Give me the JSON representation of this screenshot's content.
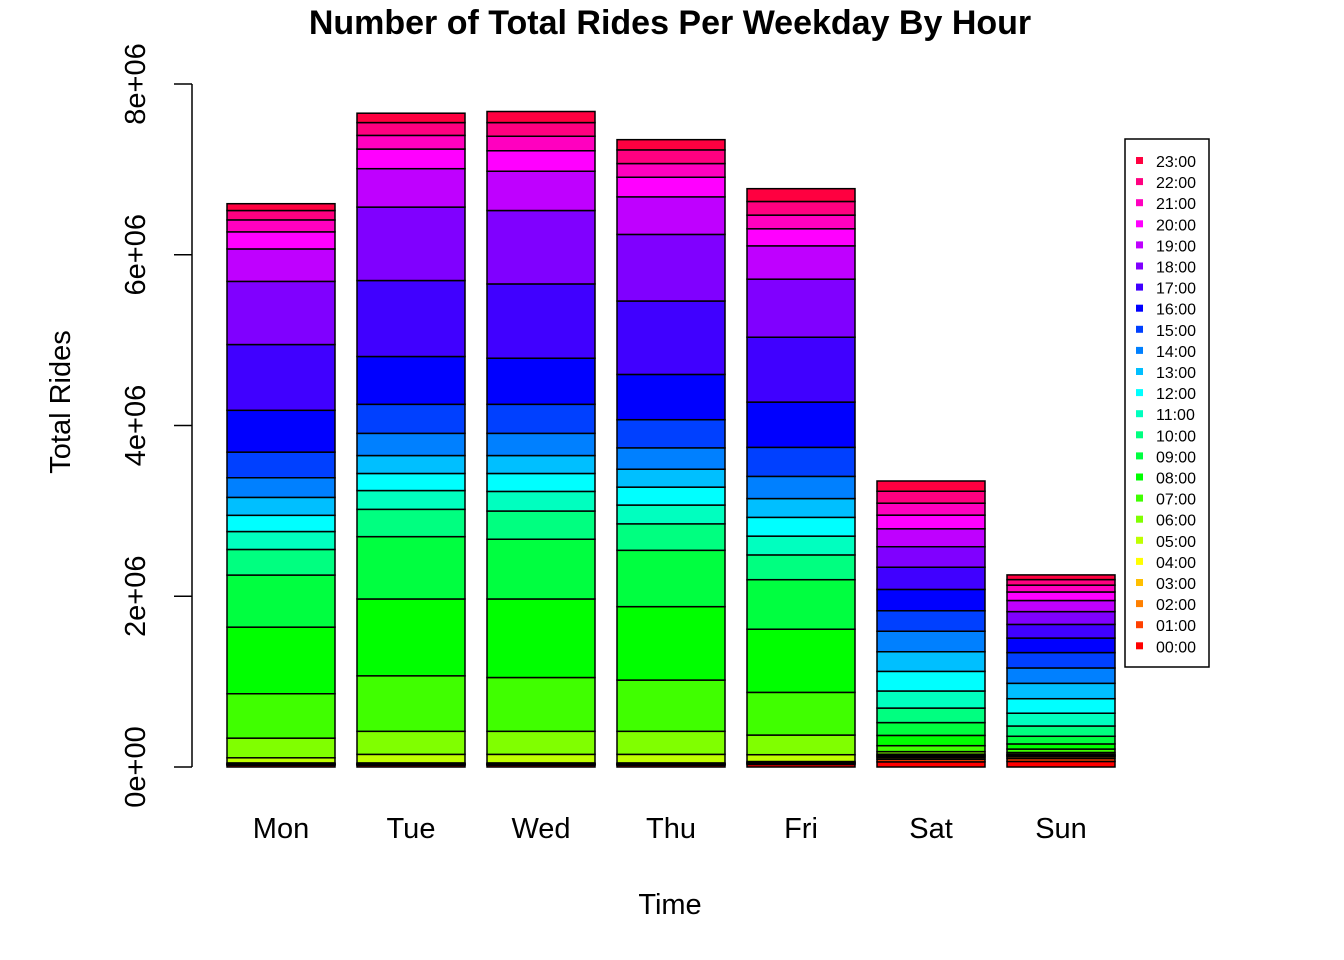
{
  "chart_data": {
    "type": "bar",
    "stacked": true,
    "title": "Number of Total Rides Per Weekday By Hour",
    "xlabel": "Time",
    "ylabel": "Total Rides",
    "ylim": [
      0,
      8000000
    ],
    "yticks": [
      0,
      2000000,
      4000000,
      6000000,
      8000000
    ],
    "ytick_labels": [
      "0e+00",
      "2e+06",
      "4e+06",
      "6e+06",
      "8e+06"
    ],
    "grid": false,
    "legend_position": "right",
    "categories": [
      "Mon",
      "Tue",
      "Wed",
      "Thu",
      "Fri",
      "Sat",
      "Sun"
    ],
    "series": [
      {
        "name": "00:00",
        "color": "#FF0000",
        "values": [
          20000,
          20000,
          20000,
          20000,
          30000,
          60000,
          65000
        ]
      },
      {
        "name": "01:00",
        "color": "#FF4000",
        "values": [
          8000,
          8000,
          8000,
          8000,
          10000,
          30000,
          35000
        ]
      },
      {
        "name": "02:00",
        "color": "#FF8000",
        "values": [
          5000,
          5000,
          5000,
          5000,
          7000,
          20000,
          20000
        ]
      },
      {
        "name": "03:00",
        "color": "#FFBF00",
        "values": [
          5000,
          5000,
          5000,
          5000,
          7000,
          15000,
          12000
        ]
      },
      {
        "name": "04:00",
        "color": "#FFFF00",
        "values": [
          10000,
          10000,
          10000,
          10000,
          10000,
          10000,
          8000
        ]
      },
      {
        "name": "05:00",
        "color": "#BFFF00",
        "values": [
          60000,
          100000,
          100000,
          100000,
          80000,
          15000,
          10000
        ]
      },
      {
        "name": "06:00",
        "color": "#80FF00",
        "values": [
          230000,
          270000,
          270000,
          270000,
          230000,
          30000,
          20000
        ]
      },
      {
        "name": "07:00",
        "color": "#40FF00",
        "values": [
          520000,
          650000,
          630000,
          600000,
          500000,
          70000,
          40000
        ]
      },
      {
        "name": "08:00",
        "color": "#00FF00",
        "values": [
          780000,
          900000,
          920000,
          860000,
          740000,
          120000,
          60000
        ]
      },
      {
        "name": "09:00",
        "color": "#00FF40",
        "values": [
          610000,
          730000,
          700000,
          660000,
          580000,
          150000,
          90000
        ]
      },
      {
        "name": "10:00",
        "color": "#00FF80",
        "values": [
          300000,
          320000,
          330000,
          310000,
          290000,
          170000,
          120000
        ]
      },
      {
        "name": "11:00",
        "color": "#00FFBF",
        "values": [
          210000,
          220000,
          230000,
          220000,
          220000,
          200000,
          150000
        ]
      },
      {
        "name": "12:00",
        "color": "#00FFFF",
        "values": [
          190000,
          200000,
          210000,
          210000,
          220000,
          230000,
          170000
        ]
      },
      {
        "name": "13:00",
        "color": "#00BFFF",
        "values": [
          210000,
          210000,
          210000,
          210000,
          220000,
          230000,
          180000
        ]
      },
      {
        "name": "14:00",
        "color": "#0080FF",
        "values": [
          230000,
          260000,
          260000,
          250000,
          260000,
          240000,
          180000
        ]
      },
      {
        "name": "15:00",
        "color": "#0040FF",
        "values": [
          300000,
          340000,
          340000,
          330000,
          340000,
          240000,
          180000
        ]
      },
      {
        "name": "16:00",
        "color": "#0000FF",
        "values": [
          490000,
          560000,
          540000,
          530000,
          530000,
          250000,
          170000
        ]
      },
      {
        "name": "17:00",
        "color": "#4000FF",
        "values": [
          770000,
          890000,
          870000,
          860000,
          760000,
          260000,
          160000
        ]
      },
      {
        "name": "18:00",
        "color": "#8000FF",
        "values": [
          740000,
          860000,
          860000,
          780000,
          680000,
          240000,
          150000
        ]
      },
      {
        "name": "19:00",
        "color": "#BF00FF",
        "values": [
          380000,
          450000,
          460000,
          440000,
          390000,
          210000,
          130000
        ]
      },
      {
        "name": "20:00",
        "color": "#FF00FF",
        "values": [
          200000,
          230000,
          240000,
          230000,
          200000,
          160000,
          100000
        ]
      },
      {
        "name": "21:00",
        "color": "#FF00BF",
        "values": [
          140000,
          160000,
          170000,
          160000,
          160000,
          140000,
          80000
        ]
      },
      {
        "name": "22:00",
        "color": "#FF0080",
        "values": [
          110000,
          150000,
          160000,
          160000,
          160000,
          140000,
          65000
        ]
      },
      {
        "name": "23:00",
        "color": "#FF0040",
        "values": [
          80000,
          110000,
          130000,
          120000,
          150000,
          120000,
          55000
        ]
      }
    ]
  }
}
